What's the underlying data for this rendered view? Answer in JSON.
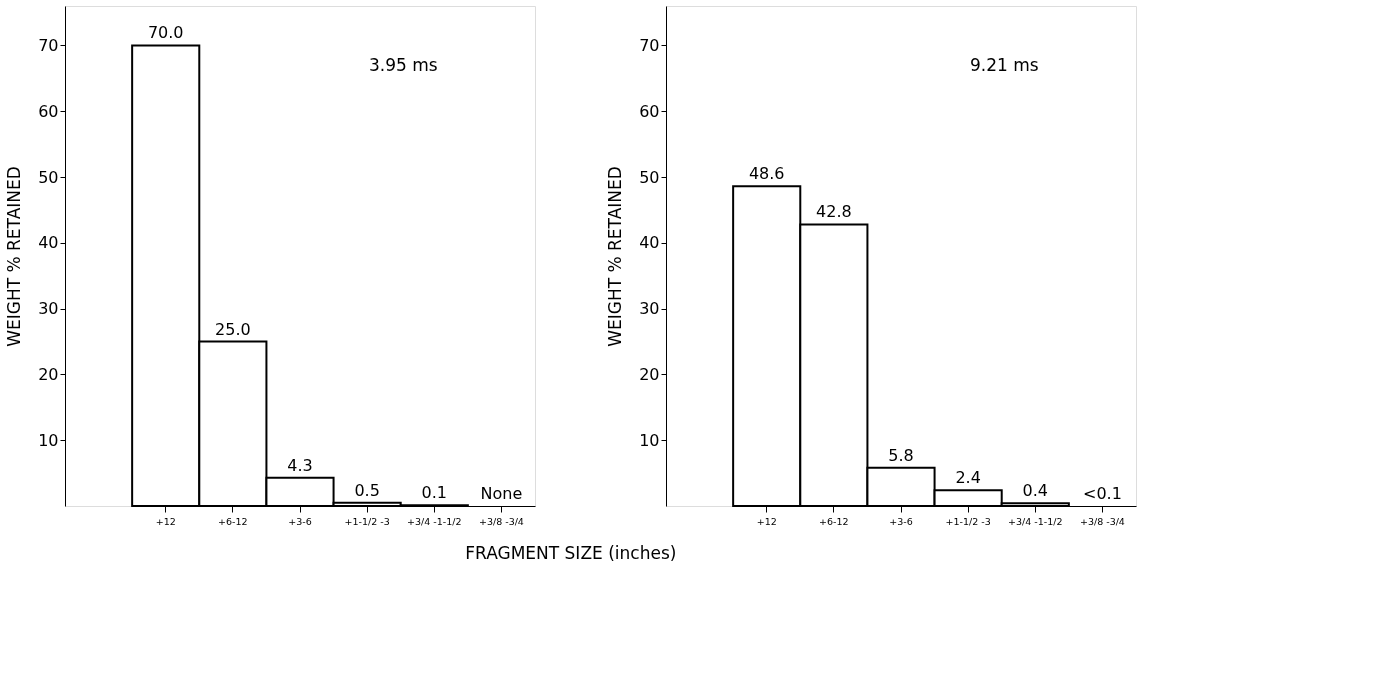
{
  "chart_data": [
    {
      "type": "bar",
      "xlabel": "FRAGMENT SIZE (inches)",
      "ylabel": "WEIGHT % RETAINED",
      "annotations": [
        "3.95 ms"
      ],
      "categories": [
        "+12",
        "+6-12",
        "+3-6",
        "+1-1/2 -3",
        "+3/4 -1-1/2",
        "+3/8 -3/4"
      ],
      "values": [
        70.0,
        25.0,
        4.3,
        0.5,
        0.1,
        null
      ],
      "value_labels": [
        "70.0",
        "25.0",
        "4.3",
        "0.5",
        "0.1",
        "None"
      ],
      "color": "#ffffff",
      "ylim": [
        0,
        76
      ],
      "yticks": [
        10,
        20,
        30,
        40,
        50,
        60,
        70
      ],
      "grid": false
    },
    {
      "type": "bar",
      "ylabel": "WEIGHT % RETAINED",
      "annotations": [
        "9.21 ms"
      ],
      "categories": [
        "+12",
        "+6-12",
        "+3-6",
        "+1-1/2 -3",
        "+3/4 -1-1/2",
        "+3/8 -3/4"
      ],
      "values": [
        48.6,
        42.8,
        5.8,
        2.4,
        0.4,
        null
      ],
      "value_labels": [
        "48.6",
        "42.8",
        "5.8",
        "2.4",
        "0.4",
        "<0.1"
      ],
      "color": "#ffffff",
      "ylim": [
        0,
        76
      ],
      "yticks": [
        10,
        20,
        30,
        40,
        50,
        60,
        70
      ],
      "grid": false
    }
  ]
}
